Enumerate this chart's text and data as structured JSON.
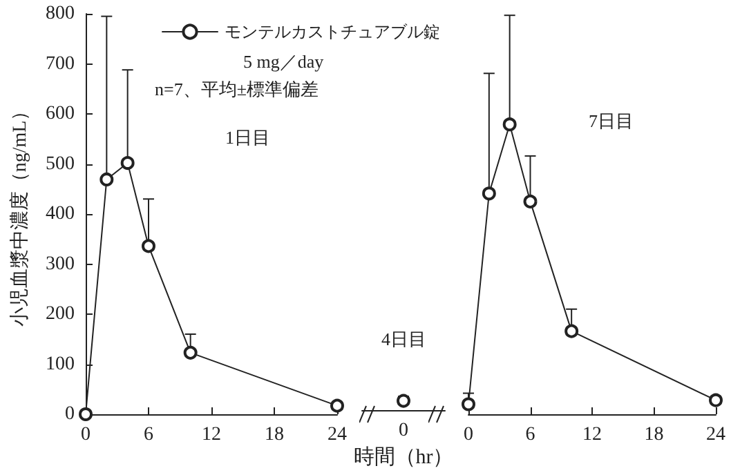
{
  "chart_data": [
    {
      "type": "line",
      "ylabel": "小児血漿中濃度（ng/mL）",
      "x": [
        0,
        2,
        4,
        6,
        10,
        24
      ],
      "series": [
        {
          "name": "モンテルカストチュアブル錠",
          "color": "#222222",
          "values": [
            0,
            469,
            502,
            336,
            123,
            17
          ],
          "errors": [
            null,
            [
              469,
              795
            ],
            [
              502,
              688
            ],
            [
              336,
              430
            ],
            [
              123,
              160
            ],
            [
              17,
              22
            ]
          ]
        }
      ],
      "xlim": [
        0,
        24
      ],
      "ylim": [
        0,
        800
      ],
      "xticks": [
        0,
        6,
        12,
        18,
        24
      ],
      "yticks": [
        0,
        100,
        200,
        300,
        400,
        500,
        600,
        700,
        800
      ],
      "annotations": [
        "5 mg／day",
        "n=7、平均±標準偏差",
        "1日目"
      ],
      "legend": "top",
      "marker": "circle",
      "line_style": "solid"
    },
    {
      "type": "line",
      "xlabel": "時間（hr）",
      "categories": [
        "0"
      ],
      "series": [
        {
          "color": "#222222",
          "values": [
            19
          ],
          "errors": [
            [
              19,
              28
            ]
          ]
        }
      ],
      "ylim": [
        0,
        800
      ],
      "annotations": [
        "4日目"
      ],
      "tick_labels": "x",
      "marker": "circle",
      "line_style": "solid"
    },
    {
      "type": "line",
      "x": [
        0,
        2,
        4,
        6,
        10,
        24
      ],
      "series": [
        {
          "color": "#222222",
          "values": [
            20,
            441,
            579,
            425,
            166,
            28
          ],
          "errors": [
            [
              20,
              42
            ],
            [
              441,
              681
            ],
            [
              579,
              797
            ],
            [
              425,
              516
            ],
            [
              166,
              210
            ],
            [
              28,
              36
            ]
          ]
        }
      ],
      "xlim": [
        0,
        24
      ],
      "ylim": [
        0,
        800
      ],
      "xticks": [
        0,
        6,
        12,
        18,
        24
      ],
      "annotations": [
        "7日目"
      ],
      "tick_labels": "x",
      "marker": "circle",
      "line_style": "solid"
    }
  ]
}
